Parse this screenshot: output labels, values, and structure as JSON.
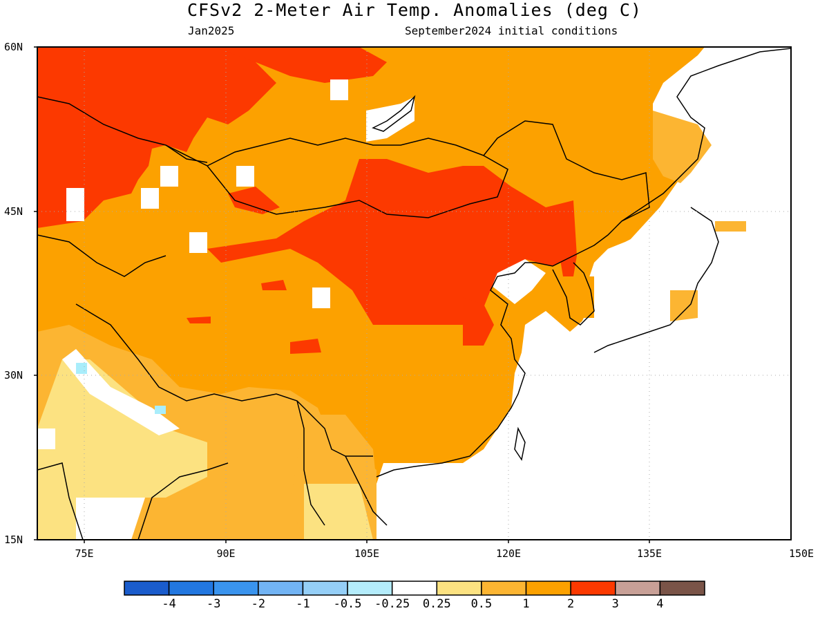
{
  "header": {
    "title": "CFSv2 2-Meter Air Temp. Anomalies (deg C)",
    "month": "Jan2025",
    "initial_conditions": "September2024 initial conditions"
  },
  "map": {
    "region": "East Asia",
    "lon_range": [
      70,
      150
    ],
    "lat_range": [
      15,
      60
    ],
    "lat_labels": [
      "60N",
      "45N",
      "30N",
      "15N"
    ],
    "lon_labels": [
      "75E",
      "90E",
      "105E",
      "120E",
      "135E",
      "150E"
    ],
    "colors": {
      "land_default_0.5_to_1": "#fcb532",
      "1_to_2": "#fca100",
      "2_to_3": "#fc3900",
      "0.25_to_0.5": "#fce281",
      "0.25_to_-0.25": "#ffffff",
      "-0.5_to_-0.25": "#a9edfb",
      "ocean": "#ffffff"
    }
  },
  "colorbar": {
    "labels": [
      "-4",
      "-3",
      "-2",
      "-1",
      "-0.5",
      "-0.25",
      "0.25",
      "0.5",
      "1",
      "2",
      "3",
      "4"
    ],
    "colors": [
      "#1a5ccc",
      "#2277e0",
      "#3a94ee",
      "#72b4f4",
      "#95cff7",
      "#b4ecfb",
      "#ffffff",
      "#fce281",
      "#fcb532",
      "#fca100",
      "#fc3900",
      "#c8a097",
      "#7a5448"
    ]
  }
}
